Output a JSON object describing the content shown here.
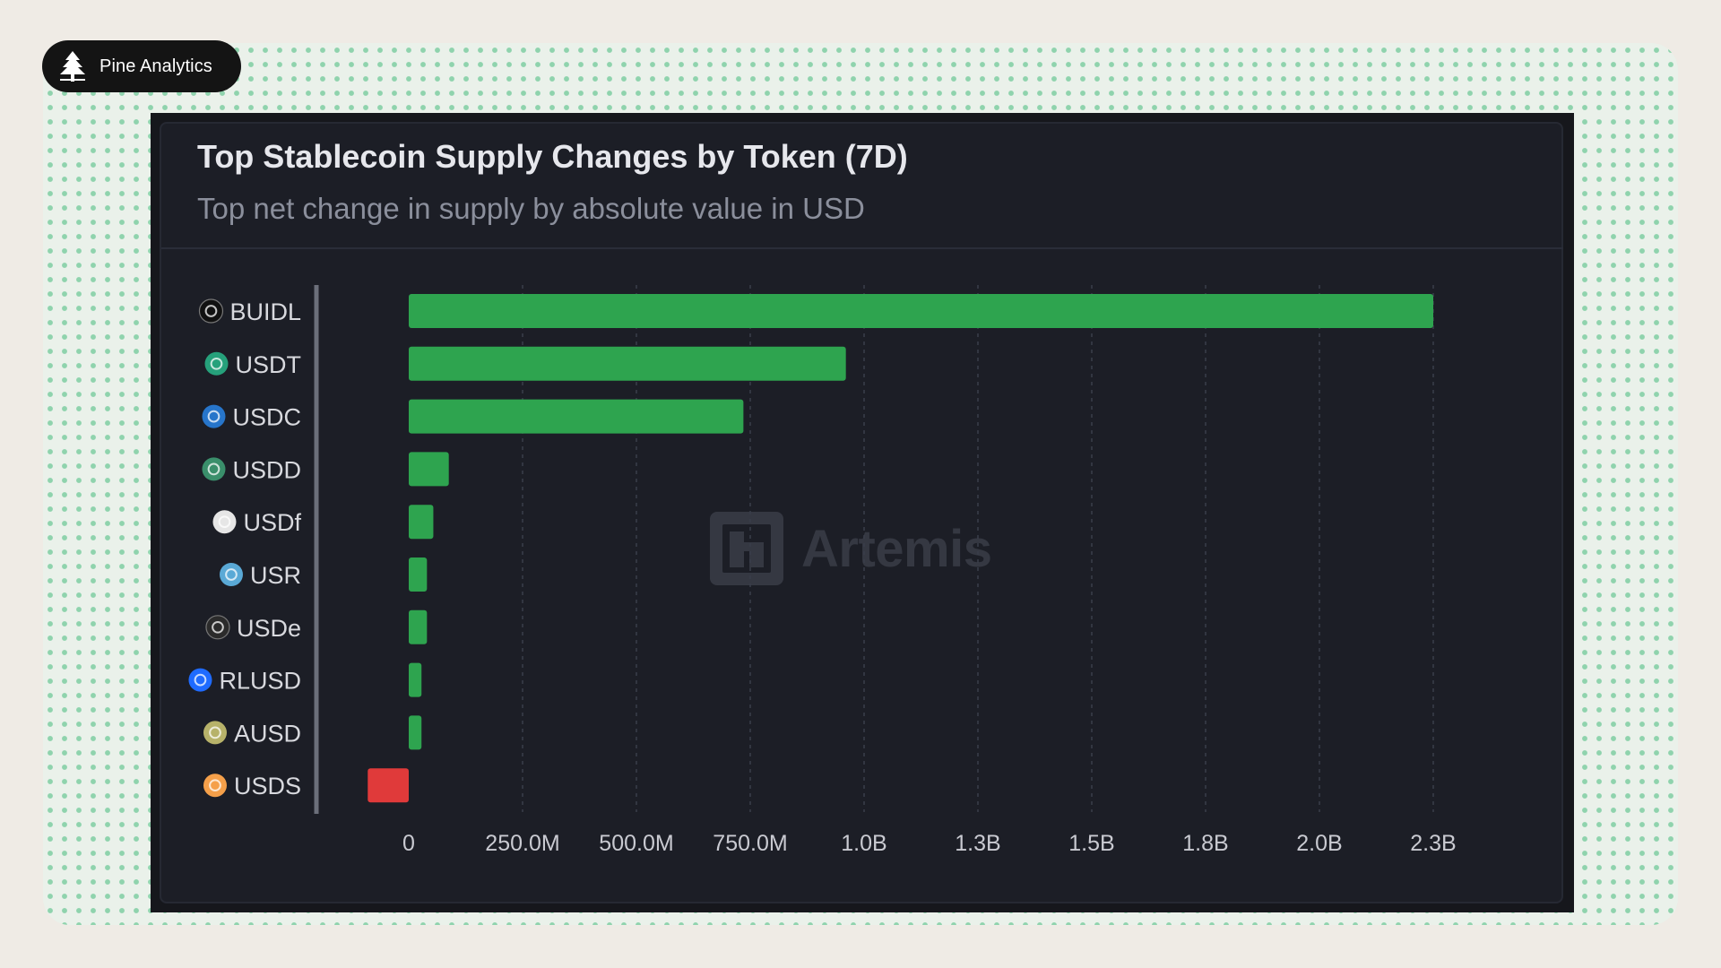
{
  "brand": {
    "name": "Pine Analytics"
  },
  "watermark": {
    "text": "Artemis"
  },
  "chart_data": {
    "type": "bar",
    "orientation": "horizontal",
    "title": "Top Stablecoin Supply Changes by Token (7D)",
    "subtitle": "Top net change in supply by absolute value in USD",
    "categories": [
      "BUIDL",
      "USDT",
      "USDC",
      "USDD",
      "USDf",
      "USR",
      "USDe",
      "RLUSD",
      "AUSD",
      "USDS"
    ],
    "values": [
      2250000000,
      960000000,
      735000000,
      88000000,
      54000000,
      40000000,
      40000000,
      28000000,
      28000000,
      -90000000
    ],
    "value_unit": "USD",
    "xlim": [
      -100000000,
      2400000000
    ],
    "x_ticks": [
      0,
      250000000,
      500000000,
      750000000,
      1000000000,
      1250000000,
      1500000000,
      1750000000,
      2000000000,
      2250000000
    ],
    "x_tick_labels": [
      "0",
      "250.0M",
      "500.0M",
      "750.0M",
      "1.0B",
      "1.3B",
      "1.5B",
      "1.8B",
      "2.0B",
      "2.3B"
    ],
    "grid": true,
    "colors": {
      "positive": "#2ea44f",
      "negative": "#e03a3a",
      "background": "#1c1e26",
      "grid": "#3a3e4a",
      "text": "#d8d9de"
    },
    "token_icons": [
      {
        "token": "BUIDL",
        "icon": "buidl-icon",
        "color": "#111111"
      },
      {
        "token": "USDT",
        "icon": "tether-icon",
        "color": "#26a17b"
      },
      {
        "token": "USDC",
        "icon": "usdc-icon",
        "color": "#2775ca"
      },
      {
        "token": "USDD",
        "icon": "usdd-icon",
        "color": "#3a8f6b"
      },
      {
        "token": "USDf",
        "icon": "usdf-icon",
        "color": "#e6e6e6"
      },
      {
        "token": "USR",
        "icon": "usr-icon",
        "color": "#5aa9d6"
      },
      {
        "token": "USDe",
        "icon": "usde-icon",
        "color": "#2b2b2b"
      },
      {
        "token": "RLUSD",
        "icon": "rlusd-icon",
        "color": "#1f6bff"
      },
      {
        "token": "AUSD",
        "icon": "ausd-icon",
        "color": "#b7b26a"
      },
      {
        "token": "USDS",
        "icon": "usds-icon",
        "color": "#f5a04a"
      }
    ]
  }
}
